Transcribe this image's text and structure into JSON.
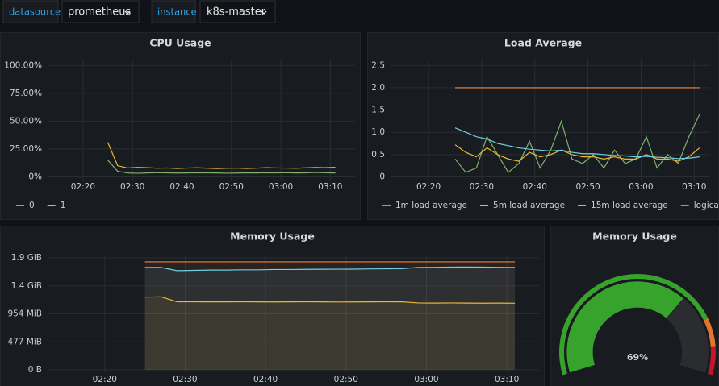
{
  "toolbar": {
    "variables": [
      {
        "label": "datasource",
        "value": "prometheus"
      },
      {
        "label": "instance",
        "value": "k8s-master"
      }
    ]
  },
  "chart_data": [
    {
      "type": "line",
      "title": "CPU Usage",
      "x": [
        "02:13",
        "02:15",
        "02:17",
        "02:19",
        "02:21",
        "02:23",
        "02:25",
        "02:27",
        "02:29",
        "02:31",
        "02:33",
        "02:35",
        "02:37",
        "02:39",
        "02:41",
        "02:43",
        "02:45",
        "02:47",
        "02:49",
        "02:51",
        "02:53",
        "02:55",
        "02:57",
        "02:59",
        "03:01",
        "03:03",
        "03:05",
        "03:07",
        "03:09",
        "03:11"
      ],
      "xlim": [
        "02:13",
        "03:15"
      ],
      "xticks": [
        "02:20",
        "02:30",
        "02:40",
        "02:50",
        "03:00",
        "03:10"
      ],
      "ylim": [
        -4,
        106
      ],
      "yticks": [
        {
          "value": 0,
          "label": "0%"
        },
        {
          "value": 25,
          "label": "25.00%"
        },
        {
          "value": 50,
          "label": "50.00%"
        },
        {
          "value": 75,
          "label": "75.00%"
        },
        {
          "value": 100,
          "label": "100.00%"
        }
      ],
      "grid": true,
      "legend": "bottom",
      "series": [
        {
          "name": "0",
          "color": "#7eb26d",
          "values": [
            null,
            null,
            null,
            null,
            null,
            null,
            15,
            5,
            3.5,
            3.2,
            3.5,
            3.8,
            3.6,
            3.4,
            3.5,
            3.7,
            3.6,
            3.5,
            3.3,
            3.4,
            3.6,
            3.5,
            3.7,
            3.6,
            3.8,
            3.5,
            3.6,
            3.9,
            3.7,
            3.5
          ]
        },
        {
          "name": "1",
          "color": "#eab839",
          "values": [
            null,
            null,
            null,
            null,
            null,
            null,
            31,
            10,
            8,
            8.5,
            8.2,
            7.8,
            8,
            7.6,
            7.9,
            8.1,
            7.8,
            7.5,
            7.7,
            7.9,
            7.6,
            7.8,
            8.2,
            8,
            7.9,
            7.7,
            8.1,
            8.4,
            8.2,
            8.6
          ]
        }
      ]
    },
    {
      "type": "line",
      "title": "Load Average",
      "x": [
        "02:13",
        "02:15",
        "02:17",
        "02:19",
        "02:21",
        "02:23",
        "02:25",
        "02:27",
        "02:29",
        "02:31",
        "02:33",
        "02:35",
        "02:37",
        "02:39",
        "02:41",
        "02:43",
        "02:45",
        "02:47",
        "02:49",
        "02:51",
        "02:53",
        "02:55",
        "02:57",
        "02:59",
        "03:01",
        "03:03",
        "03:05",
        "03:07",
        "03:09",
        "03:11"
      ],
      "xlim": [
        "02:13",
        "03:13"
      ],
      "xticks": [
        "02:20",
        "02:30",
        "02:40",
        "02:50",
        "03:00",
        "03:10"
      ],
      "ylim": [
        -0.1,
        2.65
      ],
      "yticks": [
        0,
        0.5,
        {
          "value": 1,
          "label": "1.0"
        },
        1.5,
        {
          "value": 2,
          "label": "2.0"
        },
        2.5
      ],
      "grid": true,
      "legend": "bottom",
      "series": [
        {
          "name": "1m load average",
          "color": "#7eb26d",
          "values": [
            null,
            null,
            null,
            null,
            null,
            null,
            0.4,
            0.1,
            0.2,
            0.9,
            0.5,
            0.1,
            0.3,
            0.8,
            0.2,
            0.6,
            1.25,
            0.4,
            0.3,
            0.5,
            0.2,
            0.6,
            0.3,
            0.4,
            0.9,
            0.2,
            0.5,
            0.3,
            0.9,
            1.4
          ]
        },
        {
          "name": "5m load average",
          "color": "#eab839",
          "values": [
            null,
            null,
            null,
            null,
            null,
            null,
            0.72,
            0.55,
            0.45,
            0.65,
            0.5,
            0.4,
            0.35,
            0.55,
            0.45,
            0.5,
            0.6,
            0.5,
            0.45,
            0.45,
            0.4,
            0.45,
            0.4,
            0.4,
            0.5,
            0.4,
            0.4,
            0.35,
            0.45,
            0.65
          ]
        },
        {
          "name": "15m load average",
          "color": "#6ed0e0",
          "values": [
            null,
            null,
            null,
            null,
            null,
            null,
            1.1,
            1.0,
            0.9,
            0.85,
            0.75,
            0.7,
            0.65,
            0.62,
            0.6,
            0.58,
            0.6,
            0.55,
            0.52,
            0.52,
            0.5,
            0.48,
            0.47,
            0.45,
            0.46,
            0.44,
            0.43,
            0.41,
            0.42,
            0.45
          ]
        },
        {
          "name": "logical cores",
          "color": "#ef843c",
          "values": [
            null,
            null,
            null,
            null,
            null,
            null,
            2,
            2,
            2,
            2,
            2,
            2,
            2,
            2,
            2,
            2,
            2,
            2,
            2,
            2,
            2,
            2,
            2,
            2,
            2,
            2,
            2,
            2,
            2,
            2
          ]
        }
      ]
    },
    {
      "type": "area",
      "title": "Memory Usage",
      "x": [
        "02:13",
        "02:15",
        "02:17",
        "02:19",
        "02:21",
        "02:23",
        "02:25",
        "02:27",
        "02:29",
        "02:31",
        "02:33",
        "02:35",
        "02:37",
        "02:39",
        "02:41",
        "02:43",
        "02:45",
        "02:47",
        "02:49",
        "02:51",
        "02:53",
        "02:55",
        "02:57",
        "02:59",
        "03:01",
        "03:03",
        "03:05",
        "03:07",
        "03:09",
        "03:11"
      ],
      "xlim": [
        "02:13",
        "03:14"
      ],
      "xticks": [
        "02:20",
        "02:30",
        "02:40",
        "02:50",
        "03:00",
        "03:10"
      ],
      "ylim": [
        -41,
        1963
      ],
      "yticks": [
        {
          "value": 0,
          "label": "0 B"
        },
        {
          "value": 477,
          "label": "477 MiB"
        },
        {
          "value": 954,
          "label": "954 MiB"
        },
        {
          "value": 1431,
          "label": "1.4 GiB"
        },
        {
          "value": 1908,
          "label": "1.9 GiB"
        }
      ],
      "grid": true,
      "series": [
        {
          "color": "#ef843c",
          "values": [
            null,
            null,
            null,
            null,
            null,
            null,
            1840,
            1840,
            1840,
            1840,
            1840,
            1840,
            1840,
            1840,
            1840,
            1840,
            1840,
            1840,
            1840,
            1840,
            1840,
            1840,
            1840,
            1840,
            1840,
            1840,
            1840,
            1840,
            1840,
            1840
          ]
        },
        {
          "color": "#6ed0e0",
          "values": [
            null,
            null,
            null,
            null,
            null,
            null,
            1745,
            1745,
            1690,
            1695,
            1700,
            1700,
            1705,
            1705,
            1710,
            1710,
            1712,
            1714,
            1715,
            1716,
            1720,
            1722,
            1725,
            1745,
            1748,
            1750,
            1752,
            1750,
            1748,
            1745
          ]
        },
        {
          "color": "#eab839",
          "values": [
            null,
            null,
            null,
            null,
            null,
            null,
            1240,
            1245,
            1160,
            1160,
            1158,
            1158,
            1160,
            1158,
            1157,
            1158,
            1160,
            1158,
            1156,
            1157,
            1158,
            1160,
            1158,
            1140,
            1138,
            1140,
            1138,
            1136,
            1138,
            1135
          ]
        }
      ]
    },
    {
      "type": "gauge",
      "title": "Memory Usage",
      "values": [
        69
      ],
      "value_labels": [
        "69%"
      ],
      "ylim": [
        0,
        100
      ],
      "color": "#37a22c",
      "thresholds": [
        {
          "value": 80,
          "color": "#e0752d"
        },
        {
          "value": 90,
          "color": "#c4162a"
        }
      ]
    }
  ]
}
